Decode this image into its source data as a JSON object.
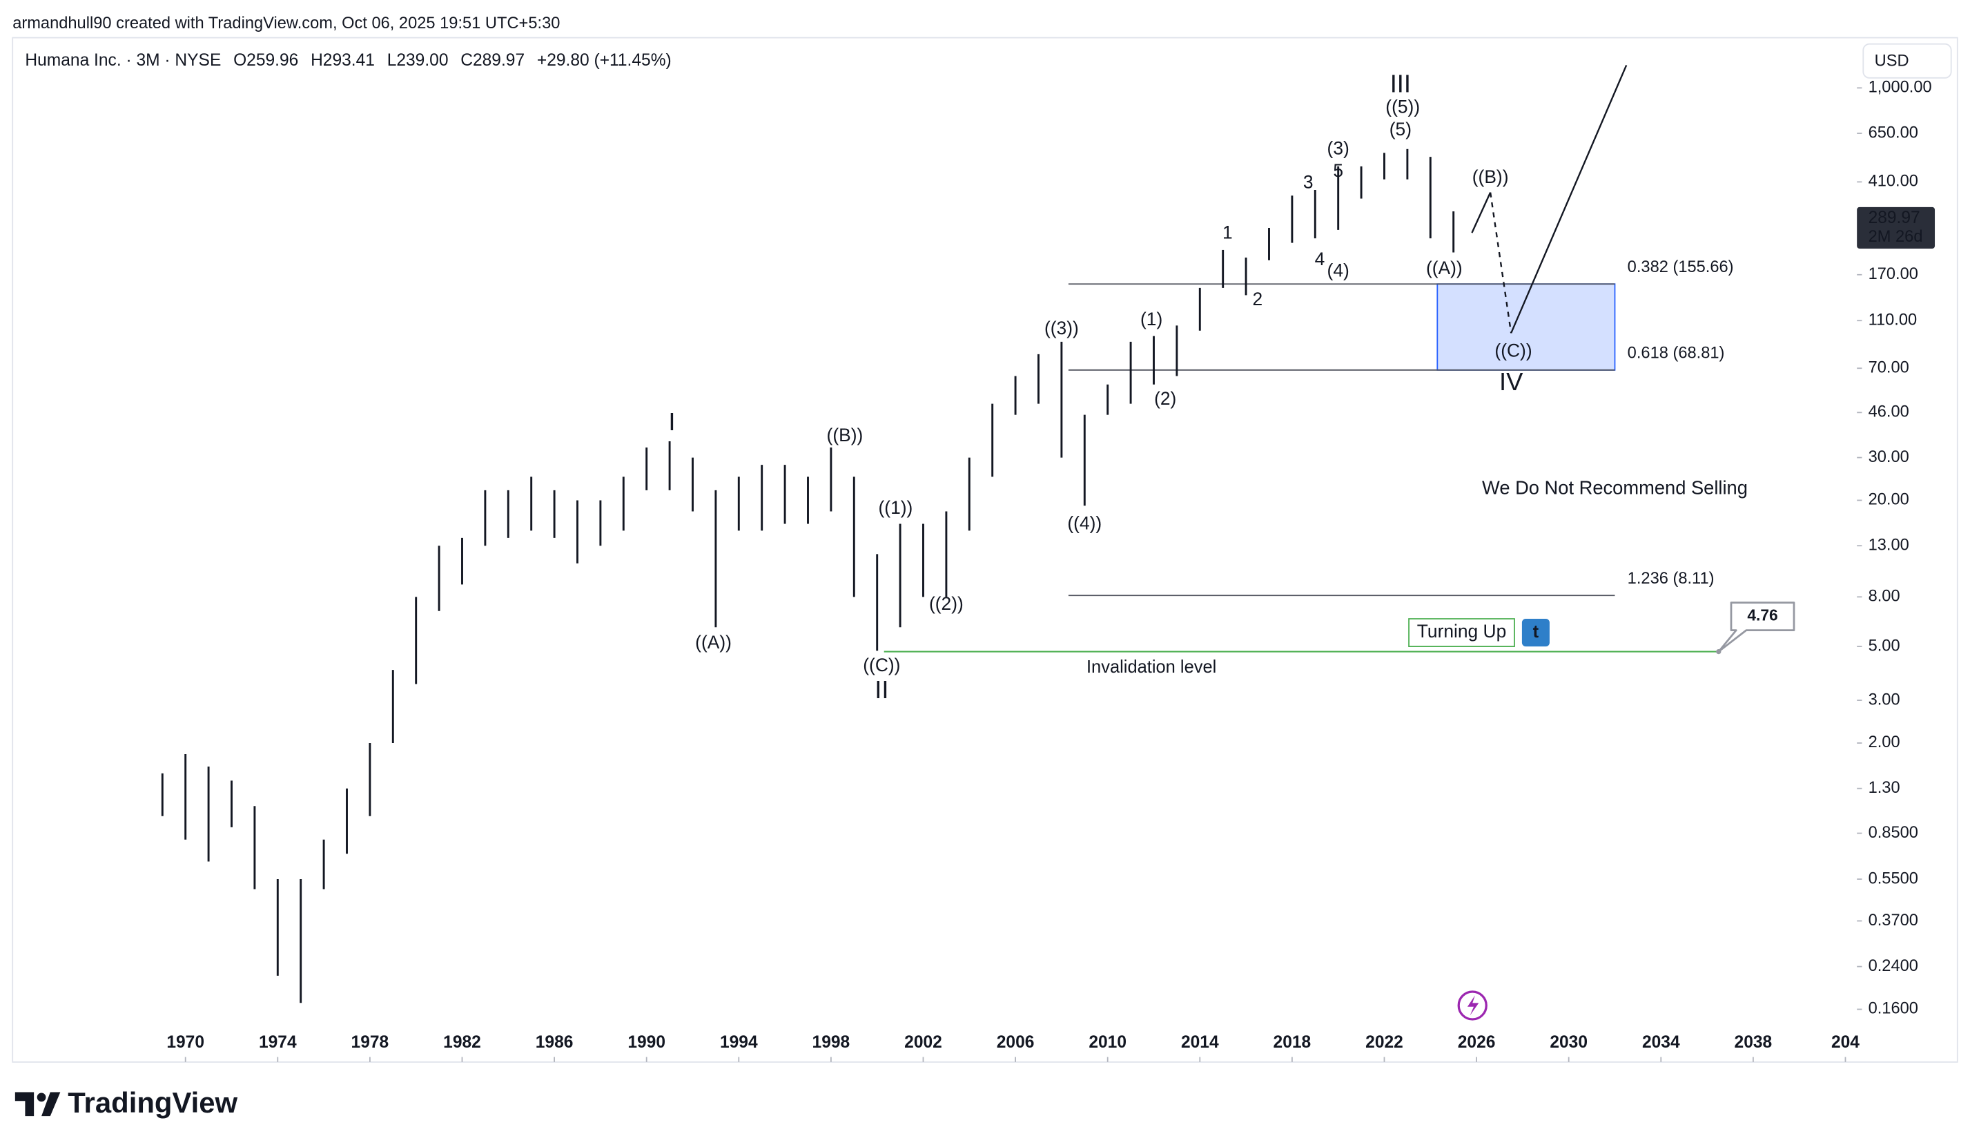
{
  "header": {
    "credit": "armandhull90 created with TradingView.com, Oct 06, 2025 19:51 UTC+5:30",
    "symbol": "Humana Inc. · 3M · NYSE",
    "open": "O259.96",
    "high": "H293.41",
    "low": "L239.00",
    "close": "C289.97",
    "change": "+29.80 (+11.45%)",
    "currency": "USD",
    "brand": "TradingView"
  },
  "chart_data": {
    "type": "range",
    "log_scale": true,
    "color": "#131722",
    "x": [
      1969,
      1970,
      1971,
      1972,
      1973,
      1974,
      1975,
      1976,
      1977,
      1978,
      1979,
      1980,
      1981,
      1982,
      1983,
      1984,
      1985,
      1986,
      1987,
      1988,
      1989,
      1990,
      1991,
      1992,
      1993,
      1994,
      1995,
      1996,
      1997,
      1998,
      1999,
      2000,
      2001,
      2002,
      2003,
      2004,
      2005,
      2006,
      2007,
      2008,
      2009,
      2010,
      2011,
      2012,
      2013,
      2014,
      2015,
      2016,
      2017,
      2018,
      2019,
      2020,
      2021,
      2022,
      2023,
      2024,
      2025
    ],
    "high": [
      1.5,
      1.8,
      1.6,
      1.4,
      1.1,
      0.55,
      0.55,
      0.8,
      1.3,
      2.0,
      4,
      8,
      13,
      14,
      22,
      22,
      25,
      22,
      20,
      20,
      25,
      33,
      35,
      30,
      22,
      25,
      28,
      28,
      25,
      33,
      25,
      12,
      16,
      16,
      18,
      30,
      50,
      65,
      80,
      90,
      45,
      60,
      90,
      95,
      105,
      150,
      215,
      200,
      265,
      360,
      380,
      475,
      475,
      540,
      560,
      520,
      310
    ],
    "low": [
      1.0,
      0.8,
      0.65,
      0.9,
      0.5,
      0.22,
      0.17,
      0.5,
      0.7,
      1.0,
      2.0,
      3.5,
      7,
      9,
      13,
      14,
      15,
      14,
      11,
      13,
      15,
      22,
      22,
      18,
      6,
      15,
      15,
      16,
      16,
      18,
      8,
      4.8,
      6,
      8,
      8,
      15,
      25,
      45,
      50,
      30,
      19,
      45,
      50,
      60,
      65,
      100,
      150,
      140,
      195,
      230,
      240,
      260,
      350,
      420,
      420,
      240,
      210
    ],
    "xlim": [
      1962.5,
      2042.5
    ],
    "ylim": [
      0.097,
      1610
    ],
    "xticks": [
      1970,
      1974,
      1978,
      1982,
      1986,
      1990,
      1994,
      1998,
      2002,
      2006,
      2010,
      2014,
      2018,
      2022,
      2026,
      2030,
      2034,
      2038,
      {
        "value": 2042,
        "label": "204"
      }
    ],
    "yticks": [
      {
        "value": 1000,
        "label": "1,000.00"
      },
      {
        "value": 650,
        "label": "650.00"
      },
      {
        "value": 410,
        "label": "410.00"
      },
      {
        "value": 170,
        "label": "170.00"
      },
      {
        "value": 110,
        "label": "110.00"
      },
      {
        "value": 70,
        "label": "70.00"
      },
      {
        "value": 46,
        "label": "46.00"
      },
      {
        "value": 30,
        "label": "30.00"
      },
      {
        "value": 20,
        "label": "20.00"
      },
      {
        "value": 13,
        "label": "13.00"
      },
      {
        "value": 8,
        "label": "8.00"
      },
      {
        "value": 5,
        "label": "5.00"
      },
      {
        "value": 3,
        "label": "3.00"
      },
      {
        "value": 2,
        "label": "2.00"
      },
      {
        "value": 1.3,
        "label": "1.30"
      },
      {
        "value": 0.85,
        "label": "0.8500"
      },
      {
        "value": 0.55,
        "label": "0.5500"
      },
      {
        "value": 0.37,
        "label": "0.3700"
      },
      {
        "value": 0.24,
        "label": "0.2400"
      },
      {
        "value": 0.16,
        "label": "0.1600"
      }
    ],
    "last_price": {
      "value": 289.97,
      "countdown": "2M 26d"
    },
    "fib_levels": [
      {
        "label": "0.382 (155.66)",
        "value": 155.66,
        "x": [
          2008.3,
          2032
        ]
      },
      {
        "label": "0.618 (68.81)",
        "value": 68.81,
        "x": [
          2008.3,
          2032
        ]
      },
      {
        "label": "1.236 (8.11)",
        "value": 8.11,
        "x": [
          2008.3,
          2032
        ]
      }
    ],
    "box_x": [
      2024.3,
      2032
    ],
    "invalidation": {
      "value": 4.76,
      "x": [
        2000.3,
        2036.5
      ],
      "label": "Invalidation level",
      "label_x": 2011.9,
      "label_y": 4.08
    },
    "projection": {
      "x": [
        2025.8,
        2026.6,
        2027.5,
        2032.5
      ],
      "y": [
        253,
        371,
        97.7,
        1240
      ]
    },
    "annotations": [
      {
        "text": "I",
        "x": 1991.1,
        "y": 41.4,
        "color": "#f23645"
      },
      {
        "text": "II",
        "x": 2000.2,
        "y": 3.26,
        "color": "#f23645"
      },
      {
        "text": "III",
        "x": 2022.7,
        "y": 1024,
        "color": "#f23645"
      },
      {
        "text": "IV",
        "x": 2027.5,
        "y": 60.5,
        "color": "#f23645"
      },
      {
        "text": "((A))",
        "x": 1992.9,
        "y": 5.13,
        "color": "#50535e"
      },
      {
        "text": "((B))",
        "x": 1998.6,
        "y": 36.7,
        "color": "#50535e"
      },
      {
        "text": "((C))",
        "x": 2000.2,
        "y": 4.14,
        "color": "#50535e"
      },
      {
        "text": "((1))",
        "x": 2000.8,
        "y": 18.4,
        "color": "#50535e"
      },
      {
        "text": "((2))",
        "x": 2003.0,
        "y": 7.41,
        "color": "#50535e"
      },
      {
        "text": "((3))",
        "x": 2008.0,
        "y": 101,
        "color": "#50535e"
      },
      {
        "text": "((4))",
        "x": 2009.0,
        "y": 15.9,
        "color": "#50535e"
      },
      {
        "text": "((5))",
        "x": 2022.8,
        "y": 826,
        "color": "#50535e"
      },
      {
        "text": "((A))",
        "x": 2024.6,
        "y": 179,
        "color": "#50535e"
      },
      {
        "text": "((B))",
        "x": 2026.6,
        "y": 424,
        "color": "#50535e"
      },
      {
        "text": "((C))",
        "x": 2027.6,
        "y": 81.7,
        "color": "#50535e"
      },
      {
        "text": "(1)",
        "x": 2011.9,
        "y": 110,
        "color": "#2962ff"
      },
      {
        "text": "(2)",
        "x": 2012.5,
        "y": 51.9,
        "color": "#2962ff"
      },
      {
        "text": "(3)",
        "x": 2020.0,
        "y": 557,
        "color": "#2962ff"
      },
      {
        "text": "(4)",
        "x": 2020.0,
        "y": 175,
        "color": "#2962ff"
      },
      {
        "text": "(5)",
        "x": 2022.7,
        "y": 667,
        "color": "#2962ff"
      },
      {
        "text": "1",
        "x": 2015.2,
        "y": 251,
        "color": "#f23645"
      },
      {
        "text": "2",
        "x": 2016.5,
        "y": 133,
        "color": "#f23645"
      },
      {
        "text": "3",
        "x": 2018.7,
        "y": 404,
        "color": "#f23645"
      },
      {
        "text": "4",
        "x": 2019.2,
        "y": 195,
        "color": "#f23645"
      },
      {
        "text": "5",
        "x": 2020.0,
        "y": 450,
        "color": "#f23645"
      },
      {
        "text": "We Do Not Recommend Selling",
        "x": 2032.0,
        "y": 22.2,
        "color": "#f23645"
      }
    ],
    "badge": {
      "text": "Turning Up",
      "x": 2025.3,
      "y": 5.7,
      "color": "#4caf50"
    }
  }
}
